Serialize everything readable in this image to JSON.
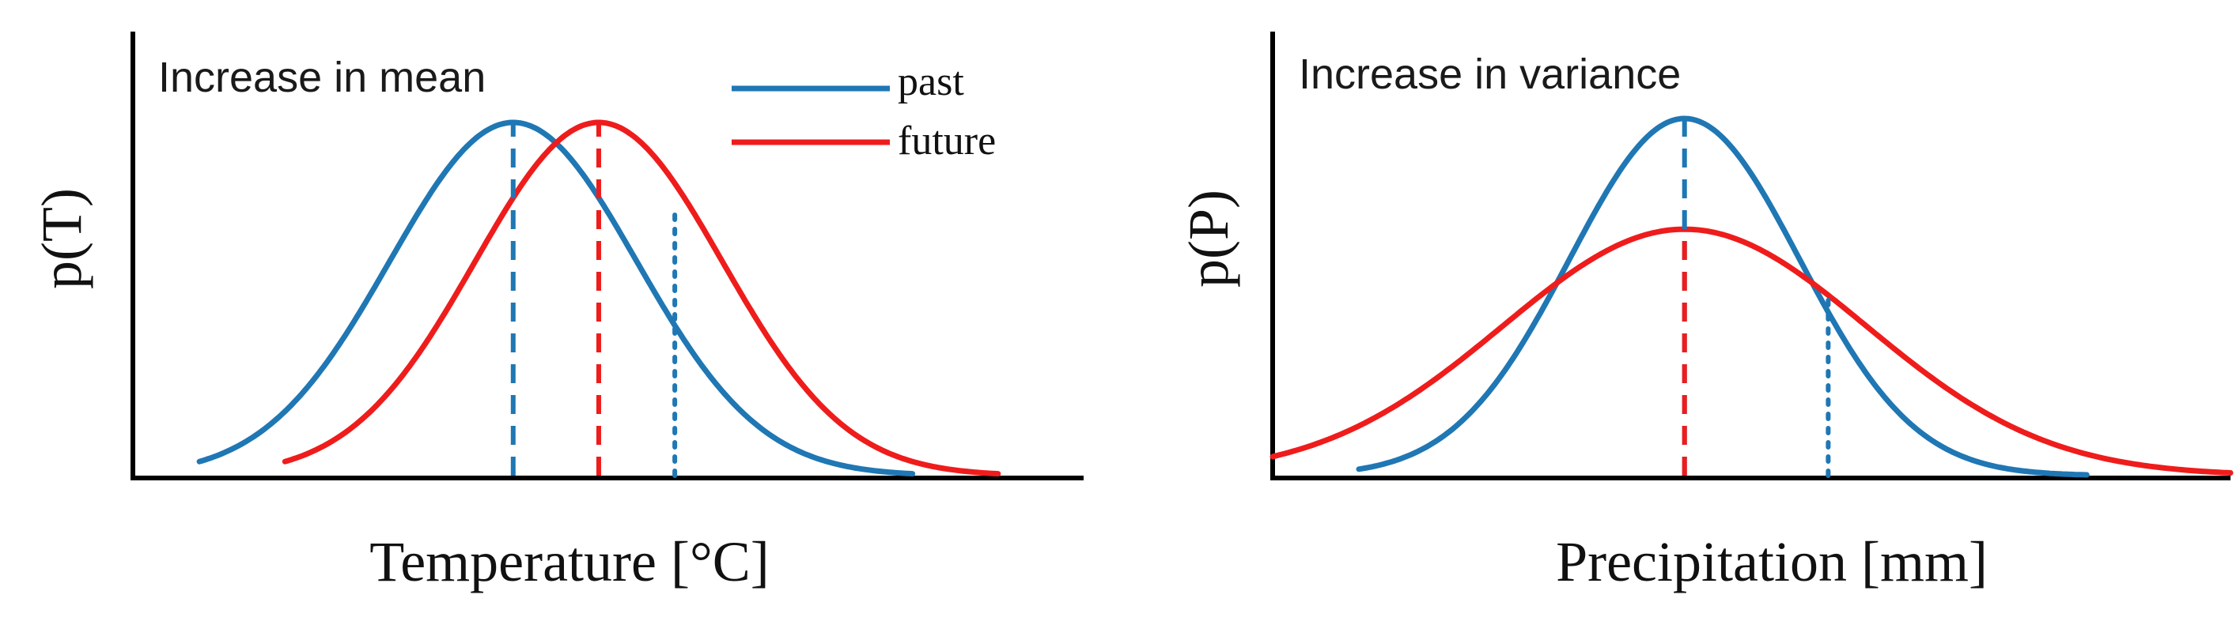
{
  "colors": {
    "past": "#1f77b4",
    "future": "#ef1c1c"
  },
  "legend": {
    "past_label": "past",
    "future_label": "future"
  },
  "chart_data": [
    {
      "type": "line",
      "title": "Increase in mean",
      "xlabel": "Temperature [°C]",
      "ylabel": "p(T)",
      "grid": false,
      "legend_position": "top-right",
      "xlim": [
        0,
        100
      ],
      "ylim": [
        0,
        1
      ],
      "series": [
        {
          "name": "past",
          "color": "#1f77b4",
          "kind": "normal",
          "mean": 40,
          "sd": 13,
          "peak": 1.0,
          "x_range": [
            7,
            82
          ]
        },
        {
          "name": "future",
          "color": "#ef1c1c",
          "kind": "normal",
          "mean": 49,
          "sd": 13,
          "peak": 1.0,
          "x_range": [
            16,
            91
          ]
        }
      ],
      "markers": [
        {
          "x": 40,
          "y_top": 1.0,
          "color": "#1f77b4",
          "style": "dashed"
        },
        {
          "x": 49,
          "y_top": 1.0,
          "color": "#ef1c1c",
          "style": "dashed"
        },
        {
          "x": 57,
          "y_top": 0.76,
          "color": "#1f77b4",
          "style": "dotted"
        }
      ]
    },
    {
      "type": "line",
      "title": "Increase in variance",
      "xlabel": "Precipitation [mm]",
      "ylabel": "p(P)",
      "grid": false,
      "xlim": [
        0,
        100
      ],
      "ylim": [
        0,
        1
      ],
      "series": [
        {
          "name": "past",
          "color": "#1f77b4",
          "kind": "normal",
          "mean": 43,
          "sd": 12,
          "peak": 1.0,
          "x_range": [
            9,
            85
          ]
        },
        {
          "name": "future",
          "color": "#ef1c1c",
          "kind": "normal",
          "mean": 43,
          "sd": 19,
          "peak": 0.69,
          "x_range": [
            0,
            100
          ]
        }
      ],
      "markers": [
        {
          "x": 43,
          "y_top": 1.0,
          "color": "#1f77b4",
          "style": "dashed",
          "segment": "upper"
        },
        {
          "x": 43,
          "y_top": 0.69,
          "color": "#ef1c1c",
          "style": "dashed",
          "segment": "lower"
        },
        {
          "x": 58,
          "y_top": 0.5,
          "color": "#1f77b4",
          "style": "dotted"
        }
      ]
    }
  ]
}
